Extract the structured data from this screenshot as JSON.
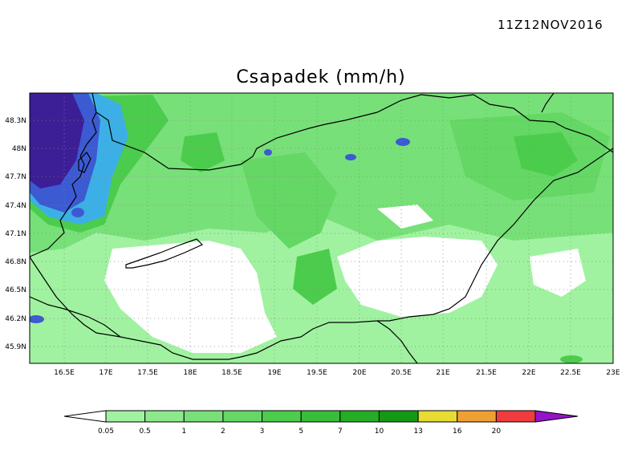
{
  "header": {
    "timestamp": "11Z12NOV2016",
    "title": "Csapadek (mm/h)"
  },
  "map": {
    "region": "Hungary and surroundings",
    "lat_ticks": [
      "48.3N",
      "48N",
      "47.7N",
      "47.4N",
      "47.1N",
      "46.8N",
      "46.5N",
      "46.2N",
      "45.9N"
    ],
    "lon_ticks": [
      "16.5E",
      "17E",
      "17.5E",
      "18E",
      "18.5E",
      "19E",
      "19.5E",
      "20E",
      "20.5E",
      "21E",
      "21.5E",
      "22E",
      "22.5E",
      "23E"
    ],
    "grid": "dotted"
  },
  "legend": {
    "levels": [
      "0.05",
      "0.5",
      "1",
      "2",
      "3",
      "5",
      "7",
      "10",
      "13",
      "16",
      "20"
    ],
    "colors": [
      "#a0f2a0",
      "#8ce98c",
      "#78e078",
      "#64d764",
      "#4ccc4c",
      "#38bd38",
      "#25ad25",
      "#149914",
      "#e6dc32",
      "#f0a032",
      "#f03c3c",
      "#9614c8"
    ],
    "below_color": "#ffffff"
  }
}
